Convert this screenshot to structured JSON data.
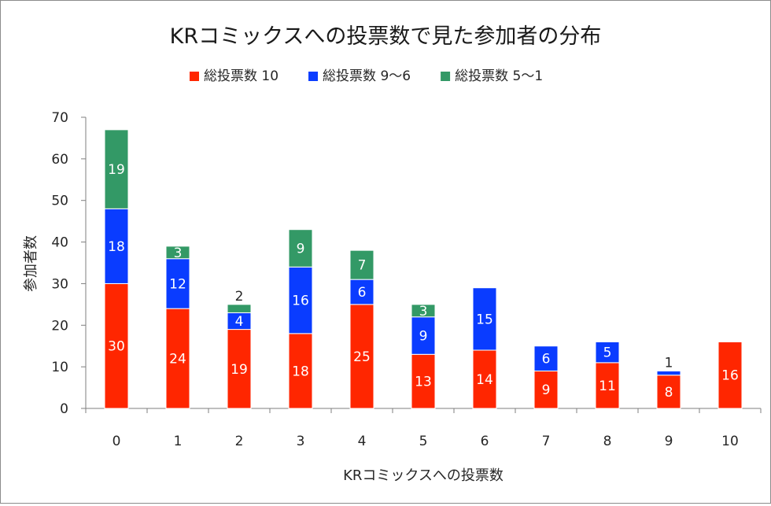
{
  "chart_data": {
    "type": "bar",
    "stacked": true,
    "title": "KRコミックスへの投票数で見た参加者の分布",
    "xlabel": "KRコミックスへの投票数",
    "ylabel": "参加者数",
    "categories": [
      "0",
      "1",
      "2",
      "3",
      "4",
      "5",
      "6",
      "7",
      "8",
      "9",
      "10"
    ],
    "ylim": [
      0,
      70
    ],
    "yticks": [
      0,
      10,
      20,
      30,
      40,
      50,
      60,
      70
    ],
    "grid": false,
    "legend": "top",
    "series": [
      {
        "name": "総投票数 10",
        "color": "#ff2600",
        "values": [
          30,
          24,
          19,
          18,
          25,
          13,
          14,
          9,
          11,
          8,
          16
        ]
      },
      {
        "name": "総投票数 9〜6",
        "color": "#0a3cff",
        "values": [
          18,
          12,
          4,
          16,
          6,
          9,
          15,
          6,
          5,
          1,
          0
        ]
      },
      {
        "name": "総投票数 5〜1",
        "color": "#339966",
        "values": [
          19,
          3,
          2,
          9,
          7,
          3,
          0,
          0,
          0,
          0,
          0
        ]
      }
    ]
  }
}
